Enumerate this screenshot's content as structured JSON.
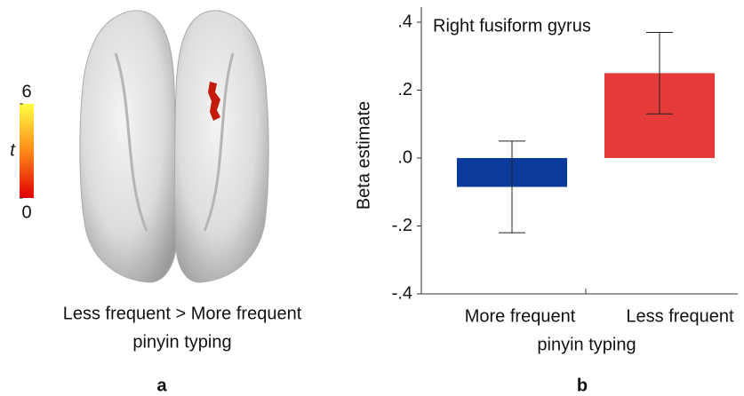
{
  "panel_a": {
    "label": "a",
    "caption": [
      "Less frequent > More frequent",
      "pinyin typing"
    ],
    "colorbar": {
      "label": "t",
      "range": [
        0,
        6
      ],
      "ticks": [
        0,
        6
      ]
    }
  },
  "chart_data": {
    "type": "bar",
    "panel_label": "b",
    "title": "Right fusiform gyrus",
    "categories": [
      "More frequent",
      "Less frequent"
    ],
    "values": [
      -0.085,
      0.25
    ],
    "errors": [
      0.135,
      0.12
    ],
    "colors": [
      "#0a3a9a",
      "#e53a3a"
    ],
    "x_label": "pinyin typing",
    "y_label": "Beta estimate",
    "ylim": [
      -0.4,
      0.4
    ],
    "yticks": [
      {
        "value": -0.4,
        "label": "-.4"
      },
      {
        "value": -0.2,
        "label": "-.2"
      },
      {
        "value": 0,
        "label": ".0"
      },
      {
        "value": 0.2,
        "label": ".2"
      },
      {
        "value": 0.4,
        "label": ".4"
      }
    ]
  }
}
